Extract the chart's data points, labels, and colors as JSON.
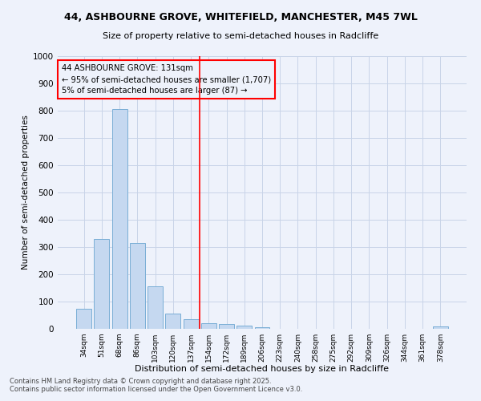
{
  "title_line1": "44, ASHBOURNE GROVE, WHITEFIELD, MANCHESTER, M45 7WL",
  "title_line2": "Size of property relative to semi-detached houses in Radcliffe",
  "xlabel": "Distribution of semi-detached houses by size in Radcliffe",
  "ylabel": "Number of semi-detached properties",
  "categories": [
    "34sqm",
    "51sqm",
    "68sqm",
    "86sqm",
    "103sqm",
    "120sqm",
    "137sqm",
    "154sqm",
    "172sqm",
    "189sqm",
    "206sqm",
    "223sqm",
    "240sqm",
    "258sqm",
    "275sqm",
    "292sqm",
    "309sqm",
    "326sqm",
    "344sqm",
    "361sqm",
    "378sqm"
  ],
  "values": [
    75,
    330,
    805,
    315,
    155,
    57,
    35,
    22,
    17,
    11,
    5,
    0,
    0,
    0,
    0,
    0,
    0,
    0,
    0,
    0,
    8
  ],
  "bar_color": "#c5d8f0",
  "bar_edge_color": "#7aaed6",
  "vline_color": "red",
  "vline_pos": 6.5,
  "annotation_text": "44 ASHBOURNE GROVE: 131sqm\n← 95% of semi-detached houses are smaller (1,707)\n5% of semi-detached houses are larger (87) →",
  "annotation_box_color": "red",
  "ylim": [
    0,
    1000
  ],
  "yticks": [
    0,
    100,
    200,
    300,
    400,
    500,
    600,
    700,
    800,
    900,
    1000
  ],
  "footer_line1": "Contains HM Land Registry data © Crown copyright and database right 2025.",
  "footer_line2": "Contains public sector information licensed under the Open Government Licence v3.0.",
  "bg_color": "#eef2fb"
}
